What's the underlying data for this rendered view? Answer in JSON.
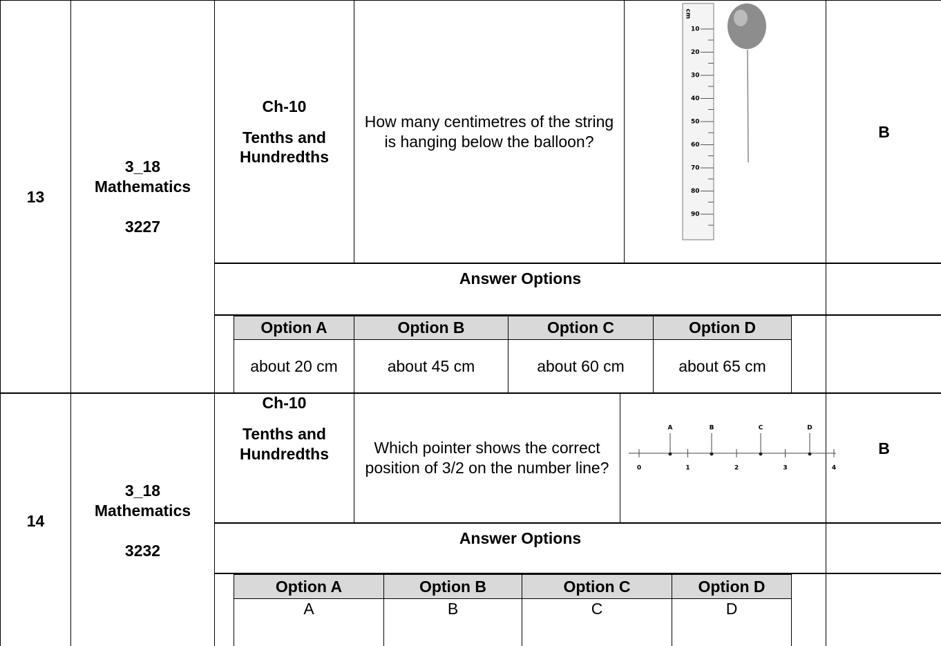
{
  "items": [
    {
      "number": "13",
      "subject_code": "3_18",
      "subject": "Mathematics",
      "id": "3227",
      "chapter": "Ch-10",
      "topic": "Tenths and Hundredths",
      "question": "How many centimetres of the string is hanging below the balloon?",
      "answer": "B",
      "answer_options_heading": "Answer Options",
      "options": [
        {
          "label": "Option A",
          "text": "about 20 cm"
        },
        {
          "label": "Option B",
          "text": "about 45 cm"
        },
        {
          "label": "Option C",
          "text": "about 60 cm"
        },
        {
          "label": "Option D",
          "text": "about 65 cm"
        }
      ],
      "figure": {
        "unit": "cm",
        "ticks": [
          "10",
          "20",
          "30",
          "40",
          "50",
          "60",
          "70",
          "80",
          "90"
        ]
      }
    },
    {
      "number": "14",
      "subject_code": "3_18",
      "subject": "Mathematics",
      "id": "3232",
      "chapter": "Ch-10",
      "topic": "Tenths and Hundredths",
      "question": "Which pointer shows the correct position of 3/2 on the number line?",
      "answer": "B",
      "answer_options_heading": "Answer Options",
      "options": [
        {
          "label": "Option A",
          "text": "A"
        },
        {
          "label": "Option B",
          "text": "B"
        },
        {
          "label": "Option C",
          "text": "C"
        },
        {
          "label": "Option D",
          "text": "D"
        }
      ],
      "figure": {
        "pointers": [
          "A",
          "B",
          "C",
          "D"
        ],
        "ticks": [
          "0",
          "1",
          "2",
          "3",
          "4"
        ]
      }
    }
  ]
}
